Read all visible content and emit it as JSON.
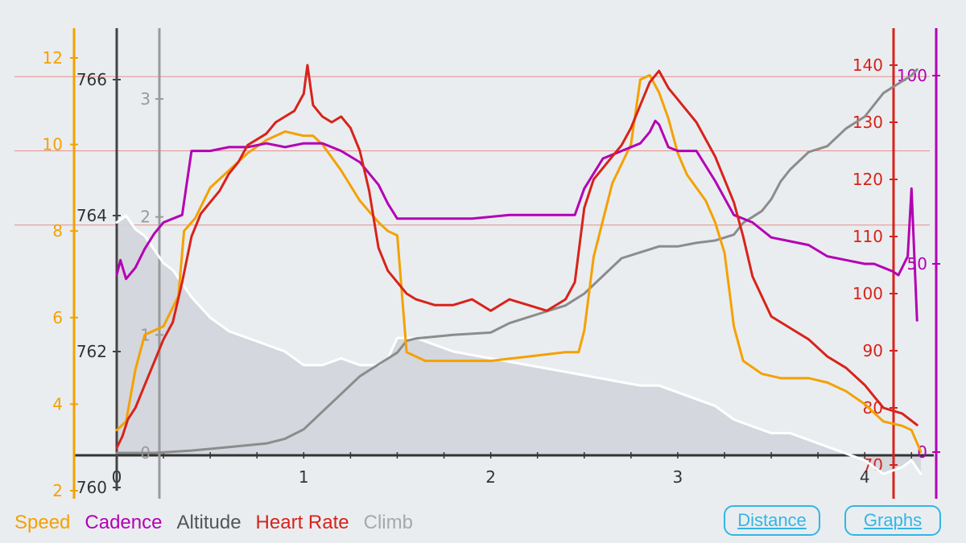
{
  "legend": {
    "speed": "Speed",
    "cadence": "Cadence",
    "altitude": "Altitude",
    "heart_rate": "Heart Rate",
    "climb": "Climb"
  },
  "buttons": {
    "distance": "Distance",
    "graphs": "Graphs"
  },
  "colors": {
    "speed": "#f4a100",
    "cadence": "#b400b4",
    "altitude": "#ffffff",
    "heart_rate": "#d8231a",
    "climb": "#8c8c8c",
    "accent": "#33b5e5",
    "background": "#e9edf0"
  },
  "chart_data": {
    "type": "line",
    "x_axis": {
      "label": "",
      "range": [
        0,
        4.3
      ],
      "ticks": [
        0,
        1,
        2,
        3,
        4
      ]
    },
    "axes": {
      "speed": {
        "range": [
          2,
          12.6
        ],
        "ticks": [
          2,
          4,
          6,
          8,
          10,
          12
        ]
      },
      "altitude": {
        "range": [
          760,
          766.4
        ],
        "ticks": [
          760,
          762,
          764,
          766
        ]
      },
      "climb": {
        "range": [
          0,
          3.2
        ],
        "ticks": [
          0,
          1,
          2,
          3
        ]
      },
      "heart_rate": {
        "range": [
          70,
          145
        ],
        "ticks": [
          70,
          80,
          90,
          100,
          110,
          120,
          130,
          140
        ]
      },
      "cadence": {
        "range": [
          0,
          105
        ],
        "ticks": [
          0,
          50,
          100
        ]
      }
    },
    "heart_rate_zones": [
      112,
      125,
      138
    ],
    "series": [
      {
        "name": "Speed",
        "axis": "speed",
        "x": [
          0,
          0.05,
          0.1,
          0.15,
          0.25,
          0.33,
          0.36,
          0.42,
          0.5,
          0.6,
          0.7,
          0.8,
          0.9,
          1.0,
          1.05,
          1.1,
          1.2,
          1.3,
          1.4,
          1.45,
          1.5,
          1.55,
          1.65,
          1.8,
          2.0,
          2.2,
          2.4,
          2.47,
          2.5,
          2.55,
          2.65,
          2.75,
          2.8,
          2.85,
          2.9,
          2.95,
          3.0,
          3.05,
          3.1,
          3.15,
          3.2,
          3.25,
          3.28,
          3.3,
          3.35,
          3.45,
          3.55,
          3.7,
          3.8,
          3.9,
          4.0,
          4.05,
          4.1,
          4.2,
          4.25,
          4.3
        ],
        "y": [
          3.4,
          3.6,
          4.8,
          5.6,
          5.8,
          6.5,
          8.0,
          8.3,
          9.0,
          9.4,
          9.8,
          10.1,
          10.3,
          10.2,
          10.2,
          10.0,
          9.4,
          8.7,
          8.2,
          8.0,
          7.9,
          5.2,
          5.0,
          5.0,
          5.0,
          5.1,
          5.2,
          5.2,
          5.7,
          7.4,
          9.1,
          10.0,
          11.5,
          11.6,
          11.2,
          10.6,
          9.8,
          9.3,
          9.0,
          8.7,
          8.2,
          7.5,
          6.5,
          5.8,
          5.0,
          4.7,
          4.6,
          4.6,
          4.5,
          4.3,
          4.0,
          3.8,
          3.6,
          3.5,
          3.4,
          2.9
        ]
      },
      {
        "name": "Cadence",
        "axis": "cadence",
        "x": [
          0,
          0.02,
          0.05,
          0.1,
          0.15,
          0.2,
          0.25,
          0.3,
          0.35,
          0.4,
          0.5,
          0.6,
          0.7,
          0.8,
          0.9,
          1.0,
          1.1,
          1.2,
          1.3,
          1.4,
          1.45,
          1.5,
          1.55,
          1.7,
          1.9,
          2.1,
          2.3,
          2.45,
          2.5,
          2.6,
          2.7,
          2.8,
          2.85,
          2.88,
          2.9,
          2.95,
          3.0,
          3.1,
          3.2,
          3.3,
          3.4,
          3.5,
          3.6,
          3.7,
          3.8,
          3.9,
          4.0,
          4.05,
          4.1,
          4.15,
          4.18,
          4.2,
          4.23,
          4.25,
          4.28
        ],
        "y": [
          47,
          51,
          46,
          49,
          54,
          58,
          61,
          62,
          63,
          80,
          80,
          81,
          81,
          82,
          81,
          82,
          82,
          80,
          77,
          71,
          66,
          62,
          62,
          62,
          62,
          63,
          63,
          63,
          70,
          78,
          80,
          82,
          85,
          88,
          87,
          81,
          80,
          80,
          72,
          63,
          61,
          57,
          56,
          55,
          52,
          51,
          50,
          50,
          49,
          48,
          47,
          49,
          52,
          70,
          35
        ]
      },
      {
        "name": "Altitude",
        "axis": "altitude",
        "fill": true,
        "x": [
          0,
          0.05,
          0.1,
          0.15,
          0.2,
          0.25,
          0.3,
          0.35,
          0.4,
          0.5,
          0.6,
          0.7,
          0.8,
          0.9,
          1.0,
          1.1,
          1.2,
          1.3,
          1.4,
          1.45,
          1.5,
          1.6,
          1.8,
          2.0,
          2.2,
          2.4,
          2.6,
          2.8,
          2.9,
          3.0,
          3.1,
          3.2,
          3.3,
          3.4,
          3.5,
          3.6,
          3.7,
          3.8,
          3.9,
          4.0,
          4.1,
          4.2,
          4.25,
          4.3
        ],
        "y": [
          763.9,
          764.0,
          763.8,
          763.7,
          763.5,
          763.3,
          763.2,
          763.0,
          762.8,
          762.5,
          762.3,
          762.2,
          762.1,
          762.0,
          761.8,
          761.8,
          761.9,
          761.8,
          761.8,
          761.9,
          762.2,
          762.2,
          762.0,
          761.9,
          761.8,
          761.7,
          761.6,
          761.5,
          761.5,
          761.4,
          761.3,
          761.2,
          761.0,
          760.9,
          760.8,
          760.8,
          760.7,
          760.6,
          760.5,
          760.4,
          760.2,
          760.3,
          760.4,
          760.2
        ]
      },
      {
        "name": "Heart Rate",
        "axis": "heart_rate",
        "x": [
          0,
          0.03,
          0.06,
          0.1,
          0.15,
          0.2,
          0.25,
          0.3,
          0.35,
          0.4,
          0.45,
          0.5,
          0.55,
          0.6,
          0.65,
          0.7,
          0.75,
          0.8,
          0.85,
          0.9,
          0.95,
          1.0,
          1.02,
          1.05,
          1.1,
          1.15,
          1.2,
          1.25,
          1.3,
          1.35,
          1.4,
          1.45,
          1.5,
          1.55,
          1.6,
          1.7,
          1.8,
          1.9,
          2.0,
          2.1,
          2.2,
          2.3,
          2.4,
          2.45,
          2.5,
          2.55,
          2.6,
          2.65,
          2.7,
          2.75,
          2.8,
          2.85,
          2.9,
          2.95,
          3.0,
          3.1,
          3.2,
          3.3,
          3.35,
          3.4,
          3.5,
          3.6,
          3.7,
          3.8,
          3.9,
          4.0,
          4.1,
          4.2,
          4.28
        ],
        "y": [
          73,
          75,
          78,
          80,
          84,
          88,
          92,
          95,
          102,
          110,
          114,
          116,
          118,
          121,
          123,
          126,
          127,
          128,
          130,
          131,
          132,
          135,
          140,
          133,
          131,
          130,
          131,
          129,
          125,
          118,
          108,
          104,
          102,
          100,
          99,
          98,
          98,
          99,
          97,
          99,
          98,
          97,
          99,
          102,
          115,
          120,
          122,
          124,
          126,
          129,
          133,
          137,
          139,
          136,
          134,
          130,
          124,
          116,
          110,
          103,
          96,
          94,
          92,
          89,
          87,
          84,
          80,
          79,
          77
        ]
      },
      {
        "name": "Climb",
        "axis": "climb",
        "x": [
          0,
          0.2,
          0.4,
          0.6,
          0.8,
          0.9,
          1.0,
          1.1,
          1.2,
          1.3,
          1.4,
          1.5,
          1.55,
          1.6,
          1.8,
          2.0,
          2.1,
          2.2,
          2.3,
          2.4,
          2.5,
          2.6,
          2.7,
          2.8,
          2.9,
          3.0,
          3.1,
          3.2,
          3.3,
          3.35,
          3.4,
          3.45,
          3.5,
          3.55,
          3.6,
          3.7,
          3.8,
          3.9,
          4.0,
          4.1,
          4.15,
          4.2,
          4.25,
          4.28
        ],
        "y": [
          0,
          0,
          0.02,
          0.05,
          0.08,
          0.12,
          0.2,
          0.35,
          0.5,
          0.65,
          0.75,
          0.85,
          0.95,
          0.97,
          1.0,
          1.02,
          1.1,
          1.15,
          1.2,
          1.25,
          1.35,
          1.5,
          1.65,
          1.7,
          1.75,
          1.75,
          1.78,
          1.8,
          1.85,
          1.95,
          2.0,
          2.05,
          2.15,
          2.3,
          2.4,
          2.55,
          2.6,
          2.75,
          2.85,
          3.05,
          3.1,
          3.15,
          3.2,
          3.25
        ]
      }
    ]
  }
}
